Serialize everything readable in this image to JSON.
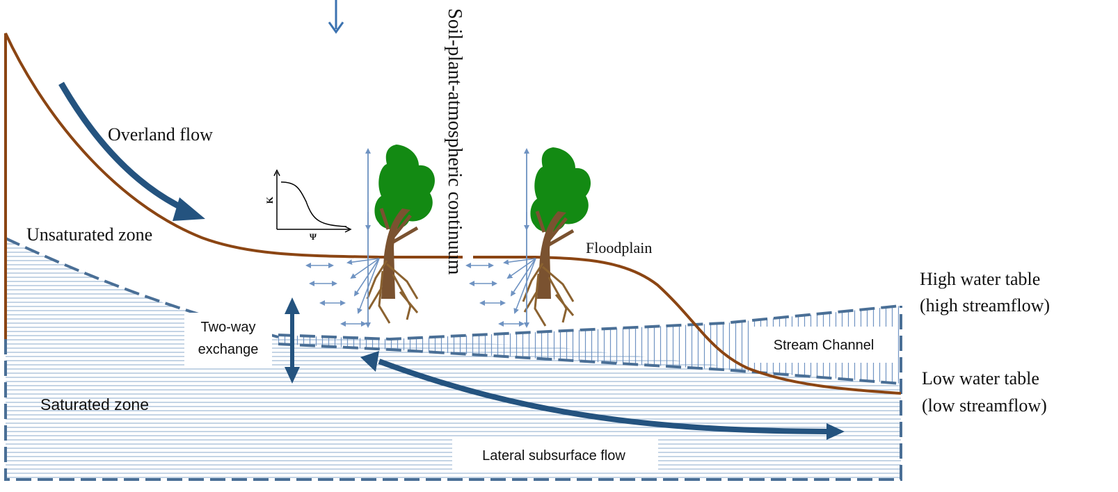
{
  "labels": {
    "overland_flow": "Overland flow",
    "unsaturated_zone": "Unsaturated zone",
    "saturated_zone": "Saturated zone",
    "two_way_line1": "Two-way",
    "two_way_line2": "exchange",
    "spac": "Soil-plant-atmospheric continuum",
    "floodplain": "Floodplain",
    "stream_channel": "Stream Channel",
    "lateral_flow": "Lateral subsurface flow",
    "high_wt_line1": "High water table",
    "high_wt_line2": "(high streamflow)",
    "low_wt_line1": "Low water table",
    "low_wt_line2": "(low streamflow)",
    "k_axis": "K",
    "psi_axis": "Ψ"
  },
  "colors": {
    "ground_surface": "#8b4513",
    "flow_arrow": "#24537f",
    "hatch_line": "#9db7d3",
    "dashed_boundary": "#4a6f96",
    "small_arrow": "#6f93c2",
    "tree_canopy": "#138a13",
    "tree_trunk": "#7a5230",
    "tree_roots": "#8b6230"
  },
  "icons": [
    "tree-icon",
    "tree-icon",
    "k-psi-curve-icon",
    "precipitation-arrow-icon"
  ]
}
